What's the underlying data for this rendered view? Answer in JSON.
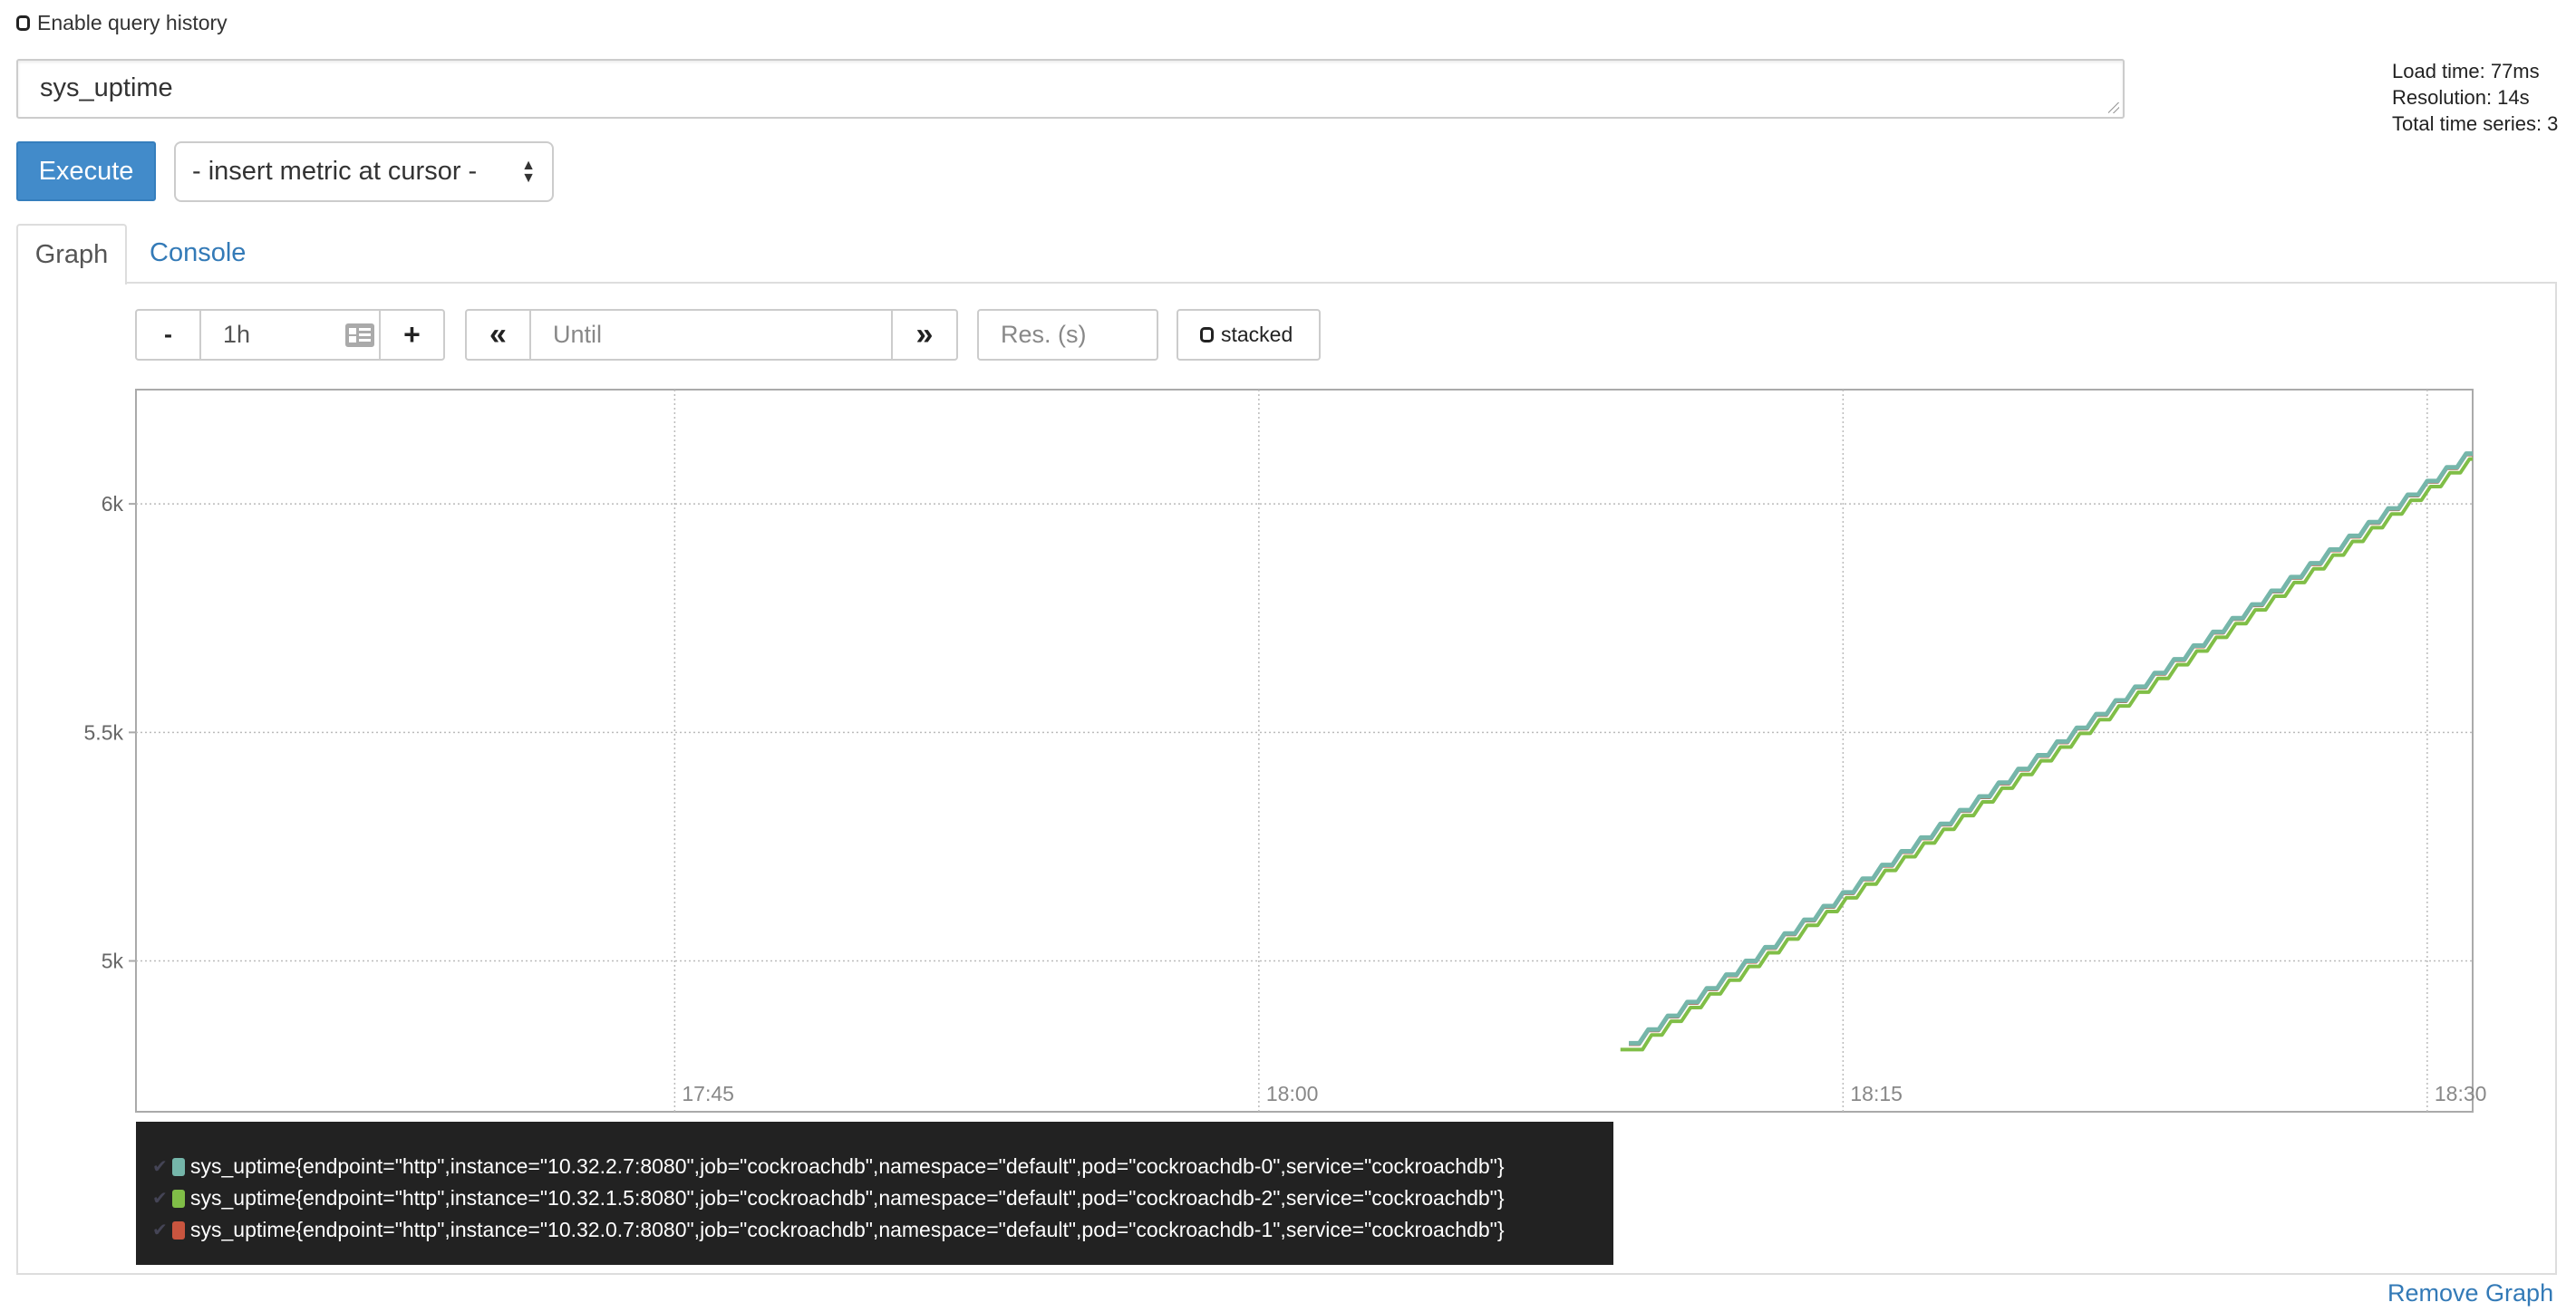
{
  "query_history": {
    "label": "Enable query history",
    "checked": false
  },
  "query": {
    "value": "sys_uptime"
  },
  "stats": {
    "load_time": "Load time: 77ms",
    "resolution": "Resolution: 14s",
    "total_series": "Total time series: 3"
  },
  "execute_label": "Execute",
  "metric_select": {
    "value": "- insert metric at cursor -"
  },
  "tabs": [
    {
      "label": "Graph",
      "active": true
    },
    {
      "label": "Console",
      "active": false
    }
  ],
  "controls": {
    "minus": "-",
    "range": "1h",
    "plus": "+",
    "back": "«",
    "until_placeholder": "Until",
    "forward": "»",
    "res_placeholder": "Res. (s)",
    "stacked_label": "stacked"
  },
  "remove_graph": "Remove Graph",
  "chart_data": {
    "type": "line",
    "xlim": [
      "17:31:10",
      "18:31:10"
    ],
    "ylim": [
      4670,
      6250
    ],
    "x_ticks": [
      "17:45",
      "18:00",
      "18:15",
      "18:30"
    ],
    "y_ticks": [
      {
        "value": 5000,
        "label": "5k"
      },
      {
        "value": 5500,
        "label": "5.5k"
      },
      {
        "value": 6000,
        "label": "6k"
      }
    ],
    "grid": true,
    "legend": "bottom",
    "x": [
      "18:09:30",
      "18:10:00",
      "18:10:30",
      "18:11:00",
      "18:11:30",
      "18:12:00",
      "18:12:30",
      "18:13:00",
      "18:13:30",
      "18:14:00",
      "18:14:30",
      "18:15:00",
      "18:15:30",
      "18:16:00",
      "18:16:30",
      "18:17:00",
      "18:17:30",
      "18:18:00",
      "18:18:30",
      "18:19:00",
      "18:19:30",
      "18:20:00",
      "18:20:30",
      "18:21:00",
      "18:21:30",
      "18:22:00",
      "18:22:30",
      "18:23:00",
      "18:23:30",
      "18:24:00",
      "18:24:30",
      "18:25:00",
      "18:25:30",
      "18:26:00",
      "18:26:30",
      "18:27:00",
      "18:27:30",
      "18:28:00",
      "18:28:30",
      "18:29:00",
      "18:29:30",
      "18:30:00",
      "18:30:30",
      "18:31:00"
    ],
    "series": [
      {
        "name": "sys_uptime{endpoint=\"http\",instance=\"10.32.2.7:8080\",job=\"cockroachdb\",namespace=\"default\",pod=\"cockroachdb-0\",service=\"cockroachdb\"}",
        "color": "#75b6aa",
        "values": [
          4820,
          4850,
          4880,
          4910,
          4940,
          4970,
          5000,
          5030,
          5060,
          5090,
          5120,
          5150,
          5180,
          5210,
          5240,
          5270,
          5300,
          5330,
          5360,
          5390,
          5420,
          5450,
          5480,
          5510,
          5540,
          5570,
          5600,
          5630,
          5660,
          5690,
          5720,
          5750,
          5780,
          5810,
          5840,
          5870,
          5900,
          5930,
          5960,
          5990,
          6020,
          6050,
          6080,
          6110
        ]
      },
      {
        "name": "sys_uptime{endpoint=\"http\",instance=\"10.32.1.5:8080\",job=\"cockroachdb\",namespace=\"default\",pod=\"cockroachdb-2\",service=\"cockroachdb\"}",
        "color": "#80be47",
        "values": [
          4806,
          4838,
          4868,
          4898,
          4928,
          4958,
          4988,
          5018,
          5048,
          5078,
          5108,
          5138,
          5168,
          5198,
          5228,
          5258,
          5288,
          5318,
          5348,
          5378,
          5408,
          5438,
          5468,
          5498,
          5528,
          5558,
          5588,
          5618,
          5648,
          5678,
          5708,
          5738,
          5768,
          5798,
          5828,
          5858,
          5888,
          5918,
          5948,
          5978,
          6008,
          6038,
          6068,
          6098
        ]
      },
      {
        "name": "sys_uptime{endpoint=\"http\",instance=\"10.32.0.7:8080\",job=\"cockroachdb\",namespace=\"default\",pod=\"cockroachdb-1\",service=\"cockroachdb\"}",
        "color": "#c9553f",
        "values": [
          4818,
          4848,
          4878,
          4908,
          4938,
          4968,
          4998,
          5028,
          5058,
          5088,
          5118,
          5148,
          5178,
          5208,
          5238,
          5268,
          5298,
          5328,
          5358,
          5388,
          5418,
          5448,
          5478,
          5508,
          5538,
          5568,
          5598,
          5628,
          5658,
          5688,
          5718,
          5748,
          5778,
          5808,
          5838,
          5868,
          5898,
          5928,
          5958,
          5988,
          6018,
          6048,
          6078,
          6108
        ]
      }
    ]
  }
}
